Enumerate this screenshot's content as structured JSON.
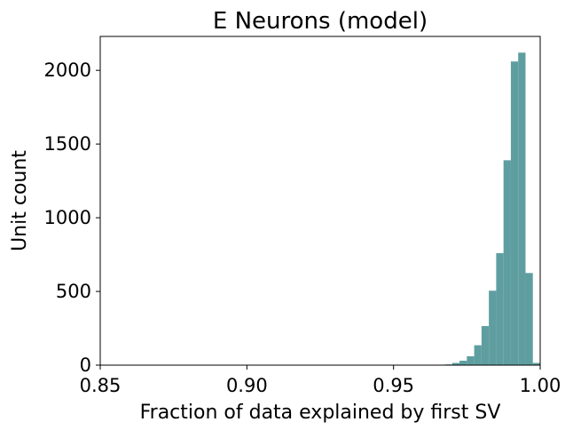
{
  "chart_data": {
    "type": "bar",
    "subtype": "histogram",
    "title": "E Neurons (model)",
    "xlabel": "Fraction of data explained by first SV",
    "ylabel": "Unit count",
    "xlim": [
      0.85,
      1.0
    ],
    "ylim": [
      0,
      2230
    ],
    "xticks": [
      0.85,
      0.9,
      0.95,
      1.0
    ],
    "xtick_labels": [
      "0.85",
      "0.90",
      "0.95",
      "1.00"
    ],
    "yticks": [
      0,
      500,
      1000,
      1500,
      2000
    ],
    "ytick_labels": [
      "0",
      "500",
      "1000",
      "1500",
      "2000"
    ],
    "grid": false,
    "bar_color": "#5f9ea0",
    "bins": [
      {
        "x0": 0.965,
        "x1": 0.9675,
        "value": 2
      },
      {
        "x0": 0.9675,
        "x1": 0.97,
        "value": 5
      },
      {
        "x0": 0.97,
        "x1": 0.9725,
        "value": 15
      },
      {
        "x0": 0.9725,
        "x1": 0.975,
        "value": 30
      },
      {
        "x0": 0.975,
        "x1": 0.9775,
        "value": 60
      },
      {
        "x0": 0.9775,
        "x1": 0.98,
        "value": 135
      },
      {
        "x0": 0.98,
        "x1": 0.9825,
        "value": 265
      },
      {
        "x0": 0.9825,
        "x1": 0.985,
        "value": 505
      },
      {
        "x0": 0.985,
        "x1": 0.9875,
        "value": 760
      },
      {
        "x0": 0.9875,
        "x1": 0.99,
        "value": 1390
      },
      {
        "x0": 0.99,
        "x1": 0.9925,
        "value": 2060
      },
      {
        "x0": 0.9925,
        "x1": 0.995,
        "value": 2120
      },
      {
        "x0": 0.995,
        "x1": 0.9975,
        "value": 625
      },
      {
        "x0": 0.9975,
        "x1": 1.0,
        "value": 15
      }
    ]
  }
}
